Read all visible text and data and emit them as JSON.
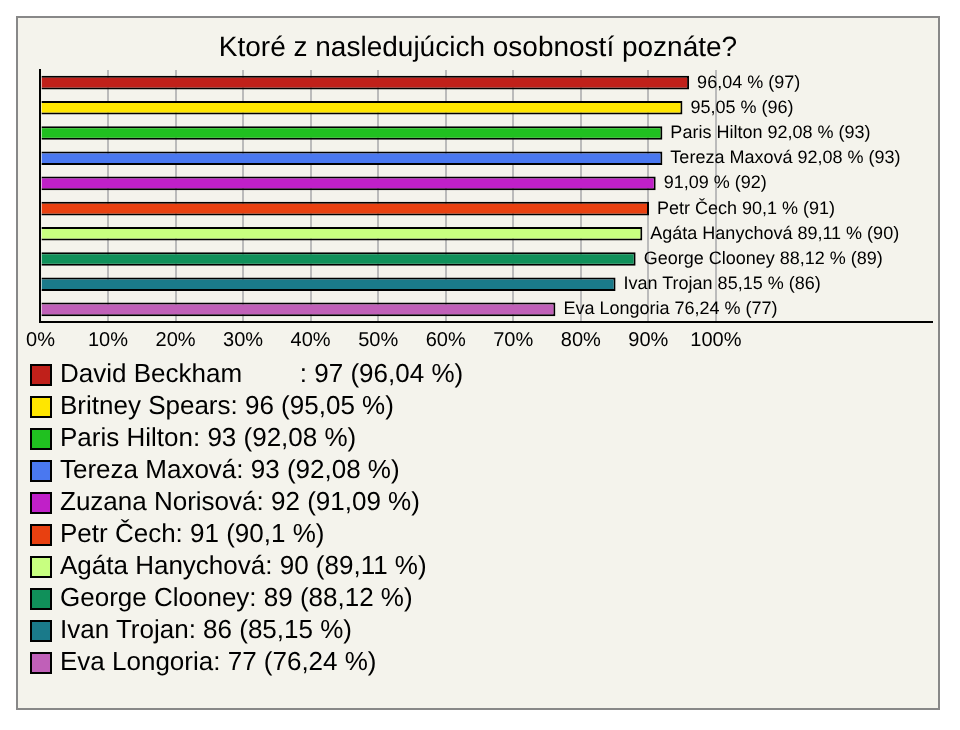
{
  "chart_data": {
    "type": "bar",
    "orientation": "horizontal",
    "stacked": true,
    "title": "Ktoré z nasledujúcich osobností poznáte?",
    "categories": [
      null,
      null,
      null,
      null,
      null,
      null,
      null,
      null,
      null,
      null
    ],
    "xlim": [
      0,
      132
    ],
    "xticks": [
      {
        "value": 0,
        "label": "0%"
      },
      {
        "value": 10,
        "label": "10%"
      },
      {
        "value": 20,
        "label": "20%"
      },
      {
        "value": 30,
        "label": "30%"
      },
      {
        "value": 40,
        "label": "40%"
      },
      {
        "value": 50,
        "label": "50%"
      },
      {
        "value": 60,
        "label": "60%"
      },
      {
        "value": 70,
        "label": "70%"
      },
      {
        "value": 80,
        "label": "80%"
      },
      {
        "value": 90,
        "label": "90%"
      },
      {
        "value": 100,
        "label": "100%"
      }
    ],
    "grid": "x",
    "legend": "bottom",
    "series": [
      {
        "name": "David Beckham        : 97 (96,04 %)",
        "color": "#c0201a",
        "values": [
          96.04,
          null,
          null,
          null,
          null,
          null,
          null,
          null,
          null,
          null
        ],
        "value_labels": [
          "96,04 % (97)",
          null,
          null,
          null,
          null,
          null,
          null,
          null,
          null,
          null
        ]
      },
      {
        "name": "Britney Spears: 96 (95,05 %)",
        "color": "#ffe600",
        "values": [
          null,
          95.05,
          null,
          null,
          null,
          null,
          null,
          null,
          null,
          null
        ],
        "value_labels": [
          null,
          "95,05 % (96)",
          null,
          null,
          null,
          null,
          null,
          null,
          null,
          null
        ]
      },
      {
        "name": "Paris Hilton: 93 (92,08 %)",
        "color": "#20c020",
        "values": [
          null,
          null,
          92.08,
          null,
          null,
          null,
          null,
          null,
          null,
          null
        ],
        "value_labels": [
          null,
          null,
          "Paris Hilton 92,08 % (93)",
          null,
          null,
          null,
          null,
          null,
          null,
          null
        ]
      },
      {
        "name": "Tereza Maxová: 93 (92,08 %)",
        "color": "#4a78f0",
        "values": [
          null,
          null,
          null,
          92.08,
          null,
          null,
          null,
          null,
          null,
          null
        ],
        "value_labels": [
          null,
          null,
          null,
          "Tereza Maxová 92,08 % (93)",
          null,
          null,
          null,
          null,
          null,
          null
        ]
      },
      {
        "name": "Zuzana Norisová: 92 (91,09 %)",
        "color": "#c020c8",
        "values": [
          null,
          null,
          null,
          null,
          91.09,
          null,
          null,
          null,
          null,
          null
        ],
        "value_labels": [
          null,
          null,
          null,
          null,
          "91,09 % (92)",
          null,
          null,
          null,
          null,
          null
        ]
      },
      {
        "name": "Petr Čech: 91 (90,1 %)",
        "color": "#e84010",
        "values": [
          null,
          null,
          null,
          null,
          null,
          90.1,
          null,
          null,
          null,
          null
        ],
        "value_labels": [
          null,
          null,
          null,
          null,
          null,
          "Petr Čech 90,1 % (91)",
          null,
          null,
          null,
          null
        ]
      },
      {
        "name": "Agáta Hanychová: 90 (89,11 %)",
        "color": "#c8ff80",
        "values": [
          null,
          null,
          null,
          null,
          null,
          null,
          89.11,
          null,
          null,
          null
        ],
        "value_labels": [
          null,
          null,
          null,
          null,
          null,
          null,
          "Agáta Hanychová 89,11 % (90)",
          null,
          null,
          null
        ]
      },
      {
        "name": "George Clooney: 89 (88,12 %)",
        "color": "#10905a",
        "values": [
          null,
          null,
          null,
          null,
          null,
          null,
          null,
          88.12,
          null,
          null
        ],
        "value_labels": [
          null,
          null,
          null,
          null,
          null,
          null,
          null,
          "George Clooney 88,12 % (89)",
          null,
          null
        ]
      },
      {
        "name": "Ivan Trojan: 86 (85,15 %)",
        "color": "#1a7a8a",
        "values": [
          null,
          null,
          null,
          null,
          null,
          null,
          null,
          null,
          85.15,
          null
        ],
        "value_labels": [
          null,
          null,
          null,
          null,
          null,
          null,
          null,
          null,
          "Ivan Trojan 85,15 % (86)",
          null
        ]
      },
      {
        "name": "Eva Longoria: 77 (76,24 %)",
        "color": "#c060b8",
        "values": [
          null,
          null,
          null,
          null,
          null,
          null,
          null,
          null,
          null,
          76.24
        ],
        "value_labels": [
          null,
          null,
          null,
          null,
          null,
          null,
          null,
          null,
          null,
          "Eva Longoria 76,24 % (77)"
        ]
      }
    ]
  }
}
